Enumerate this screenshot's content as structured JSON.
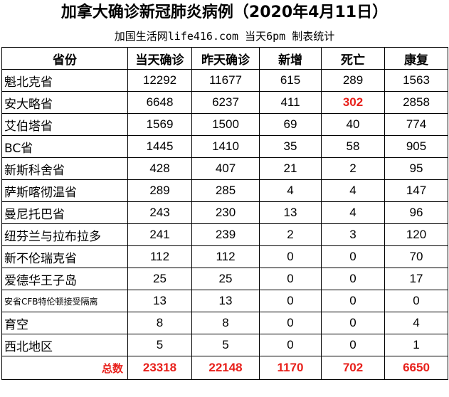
{
  "title": "加拿大确诊新冠肺炎病例（2020年4月11日）",
  "subtitle": "加国生活网life416.com 当天6pm 制表统计",
  "table": {
    "headers": [
      "省份",
      "当天确诊",
      "昨天确诊",
      "新增",
      "死亡",
      "康复"
    ],
    "rows": [
      {
        "province": "魁北克省",
        "today": "12292",
        "yesterday": "11677",
        "new": "615",
        "deaths": "289",
        "recovered": "1563"
      },
      {
        "province": "安大略省",
        "today": "6648",
        "yesterday": "6237",
        "new": "411",
        "deaths": "302",
        "recovered": "2858"
      },
      {
        "province": "艾伯塔省",
        "today": "1569",
        "yesterday": "1500",
        "new": "69",
        "deaths": "40",
        "recovered": "774"
      },
      {
        "province": "BC省",
        "today": "1445",
        "yesterday": "1410",
        "new": "35",
        "deaths": "58",
        "recovered": "905"
      },
      {
        "province": "新斯科舍省",
        "today": "428",
        "yesterday": "407",
        "new": "21",
        "deaths": "2",
        "recovered": "95"
      },
      {
        "province": "萨斯喀彻温省",
        "today": "289",
        "yesterday": "285",
        "new": "4",
        "deaths": "4",
        "recovered": "147"
      },
      {
        "province": "曼尼托巴省",
        "today": "243",
        "yesterday": "230",
        "new": "13",
        "deaths": "4",
        "recovered": "96"
      },
      {
        "province": "纽芬兰与拉布拉多",
        "today": "241",
        "yesterday": "239",
        "new": "2",
        "deaths": "3",
        "recovered": "120"
      },
      {
        "province": "新不伦瑞克省",
        "today": "112",
        "yesterday": "112",
        "new": "0",
        "deaths": "0",
        "recovered": "70"
      },
      {
        "province": "爱德华王子岛",
        "today": "25",
        "yesterday": "25",
        "new": "0",
        "deaths": "0",
        "recovered": "17"
      },
      {
        "province": "安省CFB特伦顿接受隔离",
        "today": "13",
        "yesterday": "13",
        "new": "0",
        "deaths": "0",
        "recovered": "0"
      },
      {
        "province": "育空",
        "today": "8",
        "yesterday": "8",
        "new": "0",
        "deaths": "0",
        "recovered": "4"
      },
      {
        "province": "西北地区",
        "today": "5",
        "yesterday": "5",
        "new": "0",
        "deaths": "0",
        "recovered": "1"
      }
    ],
    "total": {
      "label": "总数",
      "today": "23318",
      "yesterday": "22148",
      "new": "1170",
      "deaths": "702",
      "recovered": "6650"
    }
  },
  "colors": {
    "highlight": "#e8201b"
  }
}
